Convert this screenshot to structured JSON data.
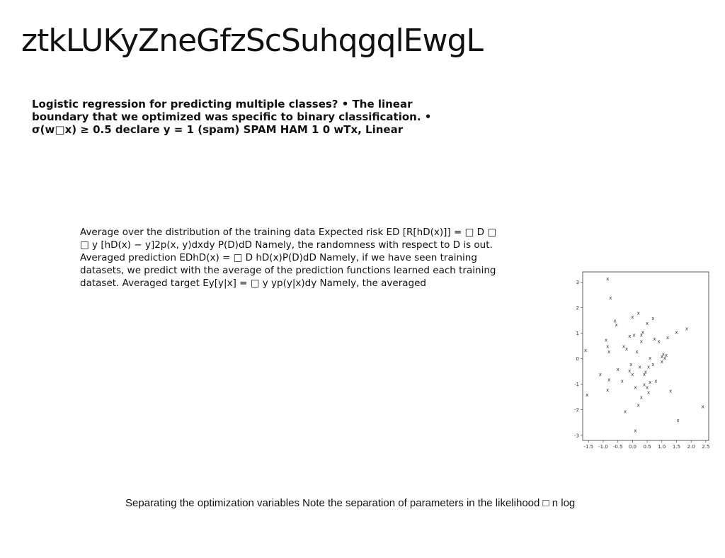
{
  "title": "ztkLUKyZneGfzScSuhqgqlEwgL",
  "bold_text": "Logistic regression for predicting multiple classes? • The linear boundary that we optimized was specific to binary classification. • σ(w□x) ≥ 0.5 declare y = 1 (spam) SPAM HAM 1 0 wTx, Linear",
  "paragraph": "Average over the distribution of the training data Expected risk ED [R[hD(x)]] = □ D □ □ y [hD(x) − y]2p(x, y)dxdy P(D)dD Namely, the randomness with respect to D is out. Averaged prediction EDhD(x) = □ D hD(x)P(D)dD Namely, if we have seen training datasets, we predict with the average of the prediction functions learned each training dataset. Averaged target Ey[y|x] = □ y yp(y|x)dy Namely, the averaged",
  "caption": "Separating the optimization variables Note the separation of parameters in the likelihood □ n log",
  "chart_data": {
    "type": "scatter",
    "marker": "x",
    "color": "#7aa7d6",
    "xlim": [
      -1.7,
      2.6
    ],
    "ylim": [
      -3.2,
      3.4
    ],
    "xticks": [
      "-1.5",
      "-1.0",
      "-0.5",
      "0.0",
      "0.5",
      "1.0",
      "1.5",
      "2.0",
      "2.5"
    ],
    "yticks": [
      "-3",
      "-2",
      "-1",
      "0",
      "1",
      "2",
      "3"
    ],
    "x": [
      -1.6,
      -1.55,
      -1.1,
      -0.9,
      -0.85,
      -0.85,
      -0.8,
      -0.8,
      -0.75,
      -0.6,
      -0.55,
      -0.5,
      -0.3,
      -0.35,
      -0.2,
      -0.1,
      -0.1,
      0.0,
      -0.05,
      0.05,
      0.0,
      0.1,
      0.15,
      0.2,
      0.2,
      0.25,
      0.3,
      0.3,
      0.35,
      0.4,
      0.4,
      0.45,
      0.5,
      0.5,
      0.55,
      0.6,
      0.6,
      0.7,
      0.7,
      0.75,
      0.8,
      0.9,
      1.0,
      1.0,
      1.05,
      1.1,
      1.15,
      1.2,
      1.3,
      1.5,
      1.55,
      1.85,
      2.4,
      -0.85,
      -0.25,
      0.1,
      0.3,
      0.55
    ],
    "y": [
      0.35,
      -1.4,
      -0.6,
      0.75,
      0.5,
      -1.2,
      0.3,
      -0.8,
      2.4,
      1.5,
      1.35,
      -0.4,
      0.5,
      -0.85,
      0.4,
      0.9,
      -0.45,
      1.65,
      -0.2,
      0.95,
      -0.6,
      -1.1,
      0.3,
      1.8,
      -1.8,
      -0.3,
      -1.5,
      0.7,
      1.05,
      -1.0,
      -0.6,
      -0.5,
      1.4,
      -1.1,
      -0.3,
      0.05,
      -0.9,
      1.6,
      -0.2,
      0.8,
      -0.85,
      0.7,
      0.1,
      -0.1,
      0.2,
      0.05,
      0.15,
      0.85,
      -1.25,
      1.05,
      -2.4,
      1.2,
      -1.85,
      3.15,
      -2.05,
      -2.8,
      0.95,
      -1.3
    ],
    "grid": false,
    "legend": false
  }
}
